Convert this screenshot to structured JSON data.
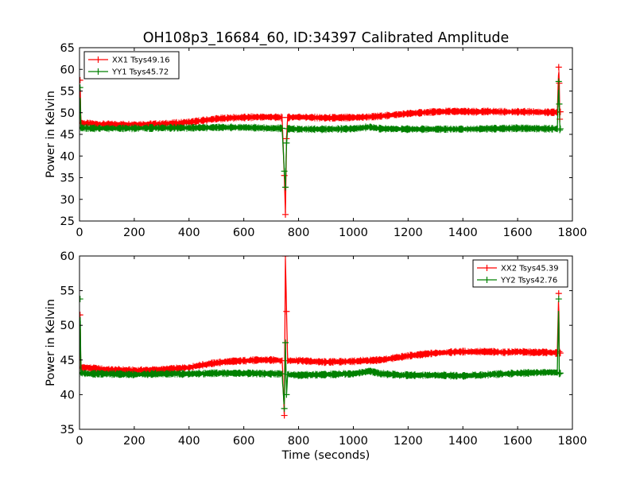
{
  "figure_title": "OH108p3_16684_60, ID:34397 Calibrated Amplitude",
  "chart_data": [
    {
      "type": "line",
      "title": "OH108p3_16684_60, ID:34397 Calibrated Amplitude",
      "xlabel": "",
      "ylabel": "Power in Kelvin",
      "xlim": [
        0,
        1800
      ],
      "ylim": [
        25,
        65
      ],
      "x_ticks": [
        0,
        200,
        400,
        600,
        800,
        1000,
        1200,
        1400,
        1600,
        1800
      ],
      "y_ticks": [
        25,
        30,
        35,
        40,
        45,
        50,
        55,
        60,
        65
      ],
      "grid": false,
      "legend_position": "upper-left",
      "series": [
        {
          "name": "XX1 Tsys49.16",
          "color": "#ff0000",
          "x": [
            0,
            2,
            5,
            10,
            50,
            100,
            200,
            300,
            400,
            450,
            500,
            550,
            600,
            650,
            700,
            740,
            748,
            752,
            756,
            760,
            800,
            900,
            1000,
            1050,
            1100,
            1150,
            1200,
            1250,
            1300,
            1350,
            1400,
            1450,
            1500,
            1550,
            1600,
            1650,
            1700,
            1745,
            1750,
            1752,
            1754,
            1756
          ],
          "y": [
            47.5,
            57.5,
            47.8,
            47.6,
            47.4,
            47.3,
            47.3,
            47.4,
            47.8,
            48.2,
            48.6,
            48.8,
            48.9,
            49.0,
            49.0,
            48.9,
            35.5,
            26.5,
            44.0,
            48.9,
            49.0,
            48.8,
            48.9,
            49.0,
            49.2,
            49.5,
            49.8,
            50.0,
            50.2,
            50.3,
            50.3,
            50.2,
            50.3,
            50.2,
            50.2,
            50.2,
            50.1,
            50.1,
            60.5,
            56.8,
            48.5,
            50.2
          ]
        },
        {
          "name": "YY1 Tsys45.72",
          "color": "#008000",
          "x": [
            0,
            2,
            5,
            10,
            50,
            100,
            200,
            300,
            400,
            500,
            600,
            700,
            740,
            748,
            752,
            756,
            760,
            800,
            900,
            1000,
            1060,
            1100,
            1200,
            1300,
            1400,
            1500,
            1600,
            1700,
            1745,
            1750,
            1752,
            1754,
            1756
          ],
          "y": [
            46.3,
            55.8,
            46.6,
            46.5,
            46.4,
            46.4,
            46.4,
            46.5,
            46.5,
            46.6,
            46.6,
            46.4,
            46.4,
            36.5,
            32.8,
            43.0,
            46.3,
            46.2,
            46.2,
            46.3,
            46.7,
            46.3,
            46.2,
            46.2,
            46.2,
            46.3,
            46.4,
            46.3,
            46.3,
            57.2,
            52.0,
            46.0,
            46.3
          ]
        }
      ]
    },
    {
      "type": "line",
      "title": "",
      "xlabel": "Time (seconds)",
      "ylabel": "Power in Kelvin",
      "xlim": [
        0,
        1800
      ],
      "ylim": [
        35,
        60
      ],
      "x_ticks": [
        0,
        200,
        400,
        600,
        800,
        1000,
        1200,
        1400,
        1600,
        1800
      ],
      "y_ticks": [
        35,
        40,
        45,
        50,
        55,
        60
      ],
      "grid": false,
      "legend_position": "upper-right",
      "series": [
        {
          "name": "XX2 Tsys45.39",
          "color": "#ff0000",
          "x": [
            0,
            2,
            5,
            10,
            50,
            100,
            200,
            300,
            400,
            450,
            500,
            550,
            600,
            650,
            700,
            740,
            748,
            752,
            756,
            760,
            800,
            900,
            1000,
            1050,
            1100,
            1150,
            1200,
            1250,
            1300,
            1350,
            1400,
            1450,
            1500,
            1550,
            1600,
            1650,
            1700,
            1745,
            1750,
            1752,
            1754,
            1756
          ],
          "y": [
            43.8,
            51.5,
            44.0,
            43.9,
            43.8,
            43.6,
            43.5,
            43.6,
            43.9,
            44.3,
            44.6,
            44.8,
            44.9,
            45.0,
            45.0,
            44.9,
            37.0,
            60.0,
            52.0,
            44.9,
            44.9,
            44.7,
            44.8,
            44.9,
            45.0,
            45.3,
            45.6,
            45.8,
            46.0,
            46.1,
            46.2,
            46.2,
            46.2,
            46.1,
            46.2,
            46.1,
            46.1,
            46.0,
            54.6,
            46.2,
            46.0,
            46.0
          ]
        },
        {
          "name": "YY2 Tsys42.76",
          "color": "#008000",
          "x": [
            0,
            2,
            5,
            10,
            50,
            100,
            200,
            300,
            400,
            500,
            600,
            700,
            740,
            748,
            752,
            756,
            760,
            800,
            900,
            1000,
            1060,
            1100,
            1200,
            1300,
            1400,
            1500,
            1600,
            1700,
            1745,
            1750,
            1752,
            1754,
            1756
          ],
          "y": [
            43.0,
            53.8,
            43.2,
            43.1,
            43.0,
            43.0,
            42.9,
            43.0,
            43.0,
            43.1,
            43.1,
            43.0,
            43.0,
            38.0,
            47.5,
            40.0,
            42.9,
            42.8,
            42.9,
            43.0,
            43.4,
            43.0,
            42.8,
            42.8,
            42.7,
            42.9,
            43.1,
            43.2,
            43.2,
            53.8,
            43.0,
            43.1,
            43.1
          ]
        }
      ]
    }
  ]
}
